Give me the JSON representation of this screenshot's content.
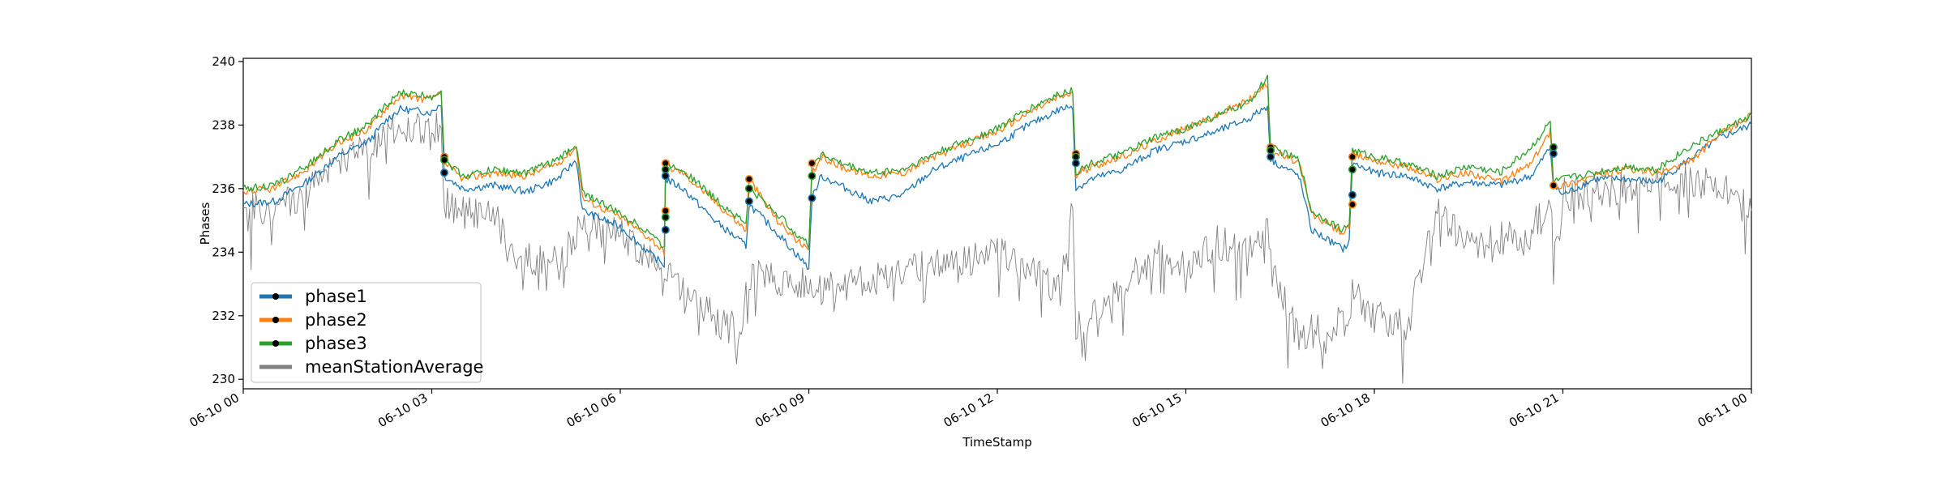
{
  "chart_data": {
    "type": "line",
    "title": "",
    "xlabel": "TimeStamp",
    "ylabel": "Phases",
    "xlim": [
      "06-10 00",
      "06-11 00"
    ],
    "ylim": [
      229.7,
      240.1
    ],
    "yticks": [
      230,
      232,
      234,
      236,
      238,
      240
    ],
    "xticks": [
      "06-10 00",
      "06-10 03",
      "06-10 06",
      "06-10 09",
      "06-10 12",
      "06-10 15",
      "06-10 18",
      "06-10 21",
      "06-11 00"
    ],
    "x_unit": "hours since 06-10 00",
    "grid": false,
    "legend_position": "lower-left",
    "series": [
      {
        "name": "phase1",
        "color": "#1f77b4",
        "marker": "dot",
        "points": [
          [
            0,
            235.5
          ],
          [
            0.5,
            235.6
          ],
          [
            1,
            236.2
          ],
          [
            1.5,
            237.0
          ],
          [
            2,
            237.5
          ],
          [
            2.3,
            238.2
          ],
          [
            2.5,
            238.5
          ],
          [
            3,
            238.4
          ],
          [
            3.15,
            238.7
          ],
          [
            3.2,
            236.4
          ],
          [
            3.5,
            236.0
          ],
          [
            4,
            236.1
          ],
          [
            4.5,
            235.9
          ],
          [
            5,
            236.3
          ],
          [
            5.3,
            236.9
          ],
          [
            5.4,
            235.3
          ],
          [
            6,
            234.8
          ],
          [
            6.5,
            233.9
          ],
          [
            6.7,
            233.6
          ],
          [
            6.72,
            236.3
          ],
          [
            7,
            236.0
          ],
          [
            7.5,
            235.0
          ],
          [
            8,
            234.2
          ],
          [
            8.05,
            235.5
          ],
          [
            8.5,
            234.6
          ],
          [
            9,
            233.5
          ],
          [
            9.05,
            235.7
          ],
          [
            9.2,
            236.4
          ],
          [
            9.5,
            236.1
          ],
          [
            10,
            235.6
          ],
          [
            10.5,
            235.8
          ],
          [
            10.8,
            236.3
          ],
          [
            11,
            236.6
          ],
          [
            11.5,
            237.0
          ],
          [
            12,
            237.4
          ],
          [
            12.5,
            238.0
          ],
          [
            13,
            238.5
          ],
          [
            13.2,
            238.6
          ],
          [
            13.25,
            236.0
          ],
          [
            13.5,
            236.3
          ],
          [
            14,
            236.6
          ],
          [
            14.5,
            237.2
          ],
          [
            15,
            237.5
          ],
          [
            15.5,
            237.8
          ],
          [
            16,
            238.2
          ],
          [
            16.3,
            238.6
          ],
          [
            16.35,
            236.9
          ],
          [
            16.8,
            236.4
          ],
          [
            17,
            234.7
          ],
          [
            17.5,
            234.1
          ],
          [
            17.6,
            234.3
          ],
          [
            17.65,
            236.8
          ],
          [
            18,
            236.5
          ],
          [
            18.5,
            236.4
          ],
          [
            19,
            236.0
          ],
          [
            19.5,
            236.2
          ],
          [
            20,
            236.1
          ],
          [
            20.5,
            236.4
          ],
          [
            20.8,
            237.3
          ],
          [
            20.85,
            236.1
          ],
          [
            21,
            235.8
          ],
          [
            21.5,
            236.3
          ],
          [
            22,
            236.3
          ],
          [
            22.5,
            236.2
          ],
          [
            23,
            236.9
          ],
          [
            23.5,
            237.6
          ],
          [
            24,
            238.0
          ]
        ]
      },
      {
        "name": "phase2",
        "color": "#ff7f0e",
        "marker": "dot",
        "points": [
          [
            0,
            235.9
          ],
          [
            0.5,
            236.0
          ],
          [
            1,
            236.6
          ],
          [
            1.5,
            237.4
          ],
          [
            2,
            237.9
          ],
          [
            2.3,
            238.6
          ],
          [
            2.5,
            238.9
          ],
          [
            3,
            238.8
          ],
          [
            3.15,
            239.0
          ],
          [
            3.2,
            236.8
          ],
          [
            3.5,
            236.3
          ],
          [
            4,
            236.5
          ],
          [
            4.5,
            236.4
          ],
          [
            5,
            236.8
          ],
          [
            5.3,
            237.3
          ],
          [
            5.4,
            235.7
          ],
          [
            6,
            235.1
          ],
          [
            6.5,
            234.4
          ],
          [
            6.7,
            234.0
          ],
          [
            6.72,
            236.7
          ],
          [
            7,
            236.5
          ],
          [
            7.5,
            235.6
          ],
          [
            8,
            234.7
          ],
          [
            8.05,
            236.3
          ],
          [
            8.5,
            235.0
          ],
          [
            9,
            234.0
          ],
          [
            9.05,
            236.5
          ],
          [
            9.2,
            237.0
          ],
          [
            9.5,
            236.7
          ],
          [
            10,
            236.4
          ],
          [
            10.5,
            236.5
          ],
          [
            10.8,
            236.8
          ],
          [
            11,
            237.0
          ],
          [
            11.5,
            237.4
          ],
          [
            12,
            237.8
          ],
          [
            12.5,
            238.4
          ],
          [
            13,
            238.9
          ],
          [
            13.2,
            239.0
          ],
          [
            13.25,
            236.4
          ],
          [
            13.5,
            236.7
          ],
          [
            14,
            237.0
          ],
          [
            14.5,
            237.5
          ],
          [
            15,
            237.9
          ],
          [
            15.5,
            238.3
          ],
          [
            16,
            238.8
          ],
          [
            16.3,
            239.3
          ],
          [
            16.35,
            237.2
          ],
          [
            16.8,
            236.8
          ],
          [
            17,
            235.2
          ],
          [
            17.5,
            234.6
          ],
          [
            17.6,
            234.8
          ],
          [
            17.65,
            237.1
          ],
          [
            18,
            236.9
          ],
          [
            18.5,
            236.7
          ],
          [
            19,
            236.3
          ],
          [
            19.5,
            236.5
          ],
          [
            20,
            236.2
          ],
          [
            20.5,
            236.8
          ],
          [
            20.8,
            237.8
          ],
          [
            20.85,
            236.1
          ],
          [
            21,
            236.1
          ],
          [
            21.5,
            236.4
          ],
          [
            22,
            236.6
          ],
          [
            22.5,
            236.5
          ],
          [
            23,
            236.8
          ],
          [
            23.5,
            237.7
          ],
          [
            24,
            238.3
          ]
        ]
      },
      {
        "name": "phase3",
        "color": "#2ca02c",
        "marker": "dot",
        "points": [
          [
            0,
            236.0
          ],
          [
            0.5,
            236.1
          ],
          [
            1,
            236.7
          ],
          [
            1.5,
            237.5
          ],
          [
            2,
            238.0
          ],
          [
            2.3,
            238.7
          ],
          [
            2.5,
            239.0
          ],
          [
            3,
            238.9
          ],
          [
            3.15,
            239.1
          ],
          [
            3.2,
            236.9
          ],
          [
            3.5,
            236.4
          ],
          [
            4,
            236.6
          ],
          [
            4.5,
            236.5
          ],
          [
            5,
            236.9
          ],
          [
            5.3,
            237.4
          ],
          [
            5.4,
            235.9
          ],
          [
            6,
            235.2
          ],
          [
            6.5,
            234.6
          ],
          [
            6.7,
            234.1
          ],
          [
            6.72,
            236.8
          ],
          [
            7,
            236.6
          ],
          [
            7.5,
            235.7
          ],
          [
            8,
            234.9
          ],
          [
            8.05,
            236.0
          ],
          [
            8.5,
            235.2
          ],
          [
            9,
            234.2
          ],
          [
            9.05,
            236.8
          ],
          [
            9.2,
            237.1
          ],
          [
            9.5,
            236.8
          ],
          [
            10,
            236.5
          ],
          [
            10.5,
            236.6
          ],
          [
            10.8,
            236.9
          ],
          [
            11,
            237.1
          ],
          [
            11.5,
            237.5
          ],
          [
            12,
            237.9
          ],
          [
            12.5,
            238.5
          ],
          [
            13,
            239.0
          ],
          [
            13.2,
            239.1
          ],
          [
            13.25,
            236.5
          ],
          [
            13.5,
            236.8
          ],
          [
            14,
            237.1
          ],
          [
            14.5,
            237.6
          ],
          [
            15,
            237.9
          ],
          [
            15.5,
            238.3
          ],
          [
            16,
            238.7
          ],
          [
            16.3,
            239.5
          ],
          [
            16.35,
            237.3
          ],
          [
            16.8,
            236.9
          ],
          [
            17,
            235.3
          ],
          [
            17.5,
            234.7
          ],
          [
            17.6,
            234.9
          ],
          [
            17.65,
            237.2
          ],
          [
            18,
            237.0
          ],
          [
            18.5,
            236.8
          ],
          [
            19,
            236.4
          ],
          [
            19.5,
            236.7
          ],
          [
            20,
            236.5
          ],
          [
            20.5,
            237.3
          ],
          [
            20.8,
            238.1
          ],
          [
            20.85,
            236.2
          ],
          [
            21,
            236.3
          ],
          [
            21.5,
            236.5
          ],
          [
            22,
            236.7
          ],
          [
            22.5,
            236.6
          ],
          [
            23,
            237.3
          ],
          [
            23.5,
            237.8
          ],
          [
            24,
            238.3
          ]
        ]
      },
      {
        "name": "meanStationAverage",
        "color": "#808080",
        "marker": "none",
        "points": [
          [
            0,
            235.3
          ],
          [
            0.5,
            235.4
          ],
          [
            1,
            235.8
          ],
          [
            1.5,
            236.8
          ],
          [
            2,
            237.2
          ],
          [
            2.3,
            237.8
          ],
          [
            2.5,
            238.0
          ],
          [
            3,
            237.7
          ],
          [
            3.15,
            238.1
          ],
          [
            3.2,
            235.6
          ],
          [
            3.5,
            235.3
          ],
          [
            4,
            235.2
          ],
          [
            4.2,
            234.1
          ],
          [
            4.5,
            233.8
          ],
          [
            5,
            233.7
          ],
          [
            5.3,
            234.5
          ],
          [
            5.4,
            234.9
          ],
          [
            6,
            234.5
          ],
          [
            6.5,
            233.9
          ],
          [
            6.7,
            233.4
          ],
          [
            6.72,
            233.2
          ],
          [
            7,
            233.0
          ],
          [
            7.5,
            231.9
          ],
          [
            7.9,
            231.5
          ],
          [
            8.05,
            233.3
          ],
          [
            8.5,
            233.1
          ],
          [
            9,
            233.0
          ],
          [
            9.05,
            232.9
          ],
          [
            9.2,
            232.8
          ],
          [
            9.5,
            233.0
          ],
          [
            10,
            233.1
          ],
          [
            10.5,
            233.3
          ],
          [
            10.8,
            233.5
          ],
          [
            11,
            233.6
          ],
          [
            11.5,
            233.8
          ],
          [
            12,
            234.1
          ],
          [
            12.5,
            233.5
          ],
          [
            13,
            232.7
          ],
          [
            13.2,
            235.6
          ],
          [
            13.25,
            231.6
          ],
          [
            13.5,
            232.0
          ],
          [
            14,
            233.0
          ],
          [
            14.5,
            233.9
          ],
          [
            15,
            233.6
          ],
          [
            15.5,
            234.3
          ],
          [
            16,
            234.2
          ],
          [
            16.3,
            234.9
          ],
          [
            16.35,
            233.6
          ],
          [
            16.8,
            231.2
          ],
          [
            17,
            231.5
          ],
          [
            17.5,
            231.8
          ],
          [
            17.6,
            231.9
          ],
          [
            17.65,
            232.8
          ],
          [
            18,
            232.0
          ],
          [
            18.5,
            231.6
          ],
          [
            19,
            235.4
          ],
          [
            19.5,
            234.2
          ],
          [
            20,
            234.4
          ],
          [
            20.5,
            234.6
          ],
          [
            20.8,
            235.9
          ],
          [
            20.85,
            233.5
          ],
          [
            21,
            235.8
          ],
          [
            21.5,
            235.9
          ],
          [
            22,
            236.0
          ],
          [
            22.5,
            236.1
          ],
          [
            23,
            236.3
          ],
          [
            23.5,
            236.0
          ],
          [
            24,
            235.3
          ]
        ]
      }
    ],
    "marker_points": [
      [
        3.2,
        237.0
      ],
      [
        3.2,
        236.9
      ],
      [
        3.2,
        236.5
      ],
      [
        6.72,
        236.8
      ],
      [
        6.72,
        236.6
      ],
      [
        6.72,
        236.4
      ],
      [
        6.72,
        235.3
      ],
      [
        6.72,
        235.1
      ],
      [
        6.72,
        234.7
      ],
      [
        8.05,
        236.3
      ],
      [
        8.05,
        236.0
      ],
      [
        8.05,
        235.6
      ],
      [
        9.05,
        236.8
      ],
      [
        9.05,
        236.4
      ],
      [
        9.05,
        235.7
      ],
      [
        13.25,
        237.1
      ],
      [
        13.25,
        237.0
      ],
      [
        13.25,
        236.8
      ],
      [
        16.35,
        237.3
      ],
      [
        16.35,
        237.2
      ],
      [
        16.35,
        237.0
      ],
      [
        17.65,
        237.0
      ],
      [
        17.65,
        236.6
      ],
      [
        17.65,
        235.8
      ],
      [
        17.65,
        235.5
      ],
      [
        20.85,
        237.3
      ],
      [
        20.85,
        237.1
      ],
      [
        20.85,
        236.1
      ]
    ]
  }
}
